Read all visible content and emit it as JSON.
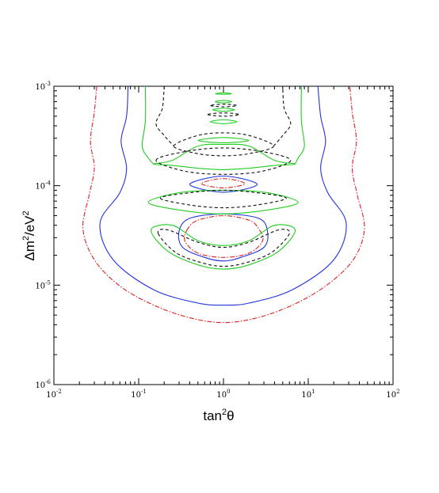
{
  "chart_data": {
    "type": "contour",
    "xlabel": {
      "base": "tan",
      "sup": "2",
      "tail": "θ"
    },
    "ylabel": {
      "parts": [
        [
          "Δm",
          ""
        ],
        [
          "2",
          "sup"
        ],
        [
          "/eV",
          ""
        ],
        [
          "2",
          "sup"
        ]
      ]
    },
    "x_scale": "log",
    "y_scale": "log",
    "xlim": [
      0.01,
      100
    ],
    "ylim": [
      1e-06,
      0.001
    ],
    "x_ticks": [
      {
        "value": 0.01,
        "base": "10",
        "exp": "-2"
      },
      {
        "value": 0.1,
        "base": "10",
        "exp": "-1"
      },
      {
        "value": 1,
        "base": "10",
        "exp": "0"
      },
      {
        "value": 10,
        "base": "10",
        "exp": "1"
      },
      {
        "value": 100,
        "base": "10",
        "exp": "2"
      }
    ],
    "y_ticks": [
      {
        "value": 1e-06,
        "base": "10",
        "exp": "-6"
      },
      {
        "value": 1e-05,
        "base": "10",
        "exp": "-5"
      },
      {
        "value": 0.0001,
        "base": "10",
        "exp": "-4"
      },
      {
        "value": 0.001,
        "base": "10",
        "exp": "-3"
      }
    ],
    "grid": false,
    "legend": "none",
    "series": [
      {
        "color": "#dd2222",
        "dash": "dashdot",
        "contours": [
          [
            [
              0.032,
              0.001
            ],
            [
              0.03,
              0.00055
            ],
            [
              0.027,
              0.00028
            ],
            [
              0.03,
              0.00015
            ],
            [
              0.026,
              8e-05
            ],
            [
              0.022,
              3.7e-05
            ],
            [
              0.03,
              1.8e-05
            ],
            [
              0.06,
              9.8e-06
            ],
            [
              0.15,
              6.3e-06
            ],
            [
              0.4,
              4.7e-06
            ],
            [
              1,
              4.2e-06
            ],
            [
              2.5,
              4.7e-06
            ],
            [
              6.5,
              6.3e-06
            ],
            [
              16,
              9.8e-06
            ],
            [
              34,
              1.8e-05
            ],
            [
              46,
              3.7e-05
            ],
            [
              38,
              8e-05
            ],
            [
              33,
              0.00015
            ],
            [
              37,
              0.00028
            ],
            [
              33,
              0.00055
            ],
            [
              31,
              0.001
            ]
          ],
          [
            [
              0.38,
              3.7e-05
            ],
            [
              0.35,
              2.8e-05
            ],
            [
              0.5,
              2.1e-05
            ],
            [
              1,
              1.9e-05
            ],
            [
              2,
              2.1e-05
            ],
            [
              2.9,
              2.8e-05
            ],
            [
              2.6,
              3.7e-05
            ],
            [
              2,
              4.5e-05
            ],
            [
              1,
              5e-05
            ],
            [
              0.5,
              4.5e-05
            ],
            [
              0.38,
              3.7e-05
            ]
          ],
          [
            [
              0.55,
              0.000105
            ],
            [
              1,
              9.5e-05
            ],
            [
              1.8,
              0.000105
            ],
            [
              1,
              0.000118
            ],
            [
              0.55,
              0.000105
            ]
          ]
        ]
      },
      {
        "color": "#2233dd",
        "dash": "solid",
        "contours": [
          [
            [
              0.075,
              0.001
            ],
            [
              0.072,
              0.0005
            ],
            [
              0.062,
              0.00028
            ],
            [
              0.072,
              0.00015
            ],
            [
              0.06,
              8.5e-05
            ],
            [
              0.035,
              4.2e-05
            ],
            [
              0.05,
              1.8e-05
            ],
            [
              0.15,
              9e-06
            ],
            [
              0.5,
              6.6e-06
            ],
            [
              1,
              6.3e-06
            ],
            [
              2,
              6.6e-06
            ],
            [
              6.5,
              9e-06
            ],
            [
              20,
              1.8e-05
            ],
            [
              28,
              4.2e-05
            ],
            [
              17,
              8.5e-05
            ],
            [
              14,
              0.00015
            ],
            [
              16,
              0.00028
            ],
            [
              14,
              0.0005
            ],
            [
              13,
              0.001
            ]
          ],
          [
            [
              0.3,
              3.5e-05
            ],
            [
              0.33,
              2.4e-05
            ],
            [
              0.6,
              1.9e-05
            ],
            [
              1,
              1.75e-05
            ],
            [
              1.6,
              1.9e-05
            ],
            [
              3,
              2.4e-05
            ],
            [
              3.3,
              3.5e-05
            ],
            [
              2.6,
              4.7e-05
            ],
            [
              1,
              5.2e-05
            ],
            [
              0.4,
              4.7e-05
            ],
            [
              0.3,
              3.5e-05
            ]
          ],
          [
            [
              0.4,
              0.000103
            ],
            [
              1,
              8.6e-05
            ],
            [
              2.5,
              0.000103
            ],
            [
              1,
              0.000125
            ],
            [
              0.4,
              0.000103
            ]
          ]
        ]
      },
      {
        "color": "#22cc22",
        "dash": "solid",
        "contours": [
          [
            [
              0.12,
              0.001
            ],
            [
              0.12,
              0.00045
            ],
            [
              0.11,
              0.00025
            ],
            [
              0.13,
              0.00019
            ],
            [
              0.15,
              0.000165
            ]
          ],
          [
            [
              7,
              0.000165
            ],
            [
              7.6,
              0.00019
            ],
            [
              9,
              0.00025
            ],
            [
              8.3,
              0.00045
            ],
            [
              8.3,
              0.001
            ]
          ],
          [
            [
              0.15,
              0.000165
            ],
            [
              0.25,
              0.00018
            ],
            [
              0.5,
              0.00025
            ],
            [
              1,
              0.00026
            ],
            [
              2,
              0.00025
            ],
            [
              4,
              0.00018
            ],
            [
              7,
              0.000165
            ],
            [
              4,
              0.00016
            ],
            [
              2,
              0.00015
            ],
            [
              1,
              0.000145
            ],
            [
              0.5,
              0.00015
            ],
            [
              0.25,
              0.00016
            ],
            [
              0.15,
              0.000165
            ]
          ],
          [
            [
              0.13,
              6.8e-05
            ],
            [
              0.3,
              5.7e-05
            ],
            [
              1,
              5.2e-05
            ],
            [
              3.3,
              5.7e-05
            ],
            [
              7.6,
              6.8e-05
            ],
            [
              3.3,
              8.5e-05
            ],
            [
              1,
              9e-05
            ],
            [
              0.3,
              8.5e-05
            ],
            [
              0.13,
              6.8e-05
            ]
          ],
          [
            [
              0.14,
              3.6e-05
            ],
            [
              0.22,
              2.2e-05
            ],
            [
              0.5,
              1.6e-05
            ],
            [
              1,
              1.45e-05
            ],
            [
              2,
              1.6e-05
            ],
            [
              4.5,
              2.2e-05
            ],
            [
              7,
              3.6e-05
            ],
            [
              4,
              4e-05
            ],
            [
              2,
              2.8e-05
            ],
            [
              1,
              2.5e-05
            ],
            [
              0.5,
              2.8e-05
            ],
            [
              0.25,
              4e-05
            ],
            [
              0.14,
              3.6e-05
            ]
          ],
          [
            [
              0.5,
              0.000285
            ],
            [
              1,
              0.00027
            ],
            [
              2,
              0.000285
            ],
            [
              1,
              0.000305
            ],
            [
              0.5,
              0.000285
            ]
          ],
          [
            [
              0.7,
              0.00044
            ],
            [
              1,
              0.00042
            ],
            [
              1.45,
              0.00044
            ],
            [
              1,
              0.00046
            ],
            [
              0.7,
              0.00044
            ]
          ],
          [
            [
              0.75,
              0.00058
            ],
            [
              1,
              0.00056
            ],
            [
              1.35,
              0.00058
            ],
            [
              1,
              0.0006
            ],
            [
              0.75,
              0.00058
            ]
          ],
          [
            [
              0.8,
              0.0007
            ],
            [
              1,
              0.00068
            ],
            [
              1.25,
              0.0007
            ],
            [
              1,
              0.00072
            ],
            [
              0.8,
              0.0007
            ]
          ],
          [
            [
              0.8,
              0.00084
            ],
            [
              1,
              0.00083
            ],
            [
              1.25,
              0.00084
            ],
            [
              1,
              0.00086
            ],
            [
              0.8,
              0.00084
            ]
          ]
        ]
      },
      {
        "color": "#111111",
        "dash": "dashed",
        "contours": [
          [
            [
              0.2,
              0.001
            ],
            [
              0.19,
              0.0006
            ],
            [
              0.16,
              0.00042
            ],
            [
              0.2,
              0.00032
            ],
            [
              0.26,
              0.00025
            ]
          ],
          [
            [
              3.9,
              0.00025
            ],
            [
              5,
              0.00032
            ],
            [
              6.2,
              0.00042
            ],
            [
              5.2,
              0.0006
            ],
            [
              5,
              0.001
            ]
          ],
          [
            [
              0.26,
              0.00025
            ],
            [
              0.5,
              0.00032
            ],
            [
              1,
              0.00034
            ],
            [
              2,
              0.00032
            ],
            [
              3.9,
              0.00025
            ],
            [
              2,
              0.00021
            ],
            [
              1,
              0.0002
            ],
            [
              0.5,
              0.00021
            ],
            [
              0.26,
              0.00025
            ]
          ],
          [
            [
              0.16,
              0.00018
            ],
            [
              0.35,
              0.00022
            ],
            [
              1,
              0.00024
            ],
            [
              2.9,
              0.00022
            ],
            [
              6.2,
              0.00018
            ],
            [
              2.9,
              0.00014
            ],
            [
              1,
              0.00013
            ],
            [
              0.35,
              0.00014
            ],
            [
              0.16,
              0.00018
            ]
          ],
          [
            [
              0.18,
              7.5e-05
            ],
            [
              0.4,
              6.4e-05
            ],
            [
              1,
              6e-05
            ],
            [
              2.5,
              6.4e-05
            ],
            [
              5.5,
              7.5e-05
            ],
            [
              2.5,
              8.5e-05
            ],
            [
              1,
              9e-05
            ],
            [
              0.4,
              8.5e-05
            ],
            [
              0.18,
              7.5e-05
            ]
          ],
          [
            [
              0.17,
              3.3e-05
            ],
            [
              0.28,
              2.1e-05
            ],
            [
              0.6,
              1.65e-05
            ],
            [
              1,
              1.55e-05
            ],
            [
              1.7,
              1.65e-05
            ],
            [
              3.6,
              2.1e-05
            ],
            [
              6,
              3.3e-05
            ],
            [
              4.5,
              3.6e-05
            ],
            [
              2,
              2.7e-05
            ],
            [
              1,
              2.4e-05
            ],
            [
              0.5,
              2.7e-05
            ],
            [
              0.22,
              3.6e-05
            ],
            [
              0.17,
              3.3e-05
            ]
          ],
          [
            [
              0.65,
              0.00052
            ],
            [
              1,
              0.0005
            ],
            [
              1.55,
              0.00052
            ],
            [
              1,
              0.00054
            ],
            [
              0.65,
              0.00052
            ]
          ],
          [
            [
              0.7,
              0.00064
            ],
            [
              1,
              0.00062
            ],
            [
              1.45,
              0.00064
            ],
            [
              1,
              0.00066
            ],
            [
              0.7,
              0.00064
            ]
          ]
        ]
      }
    ]
  }
}
